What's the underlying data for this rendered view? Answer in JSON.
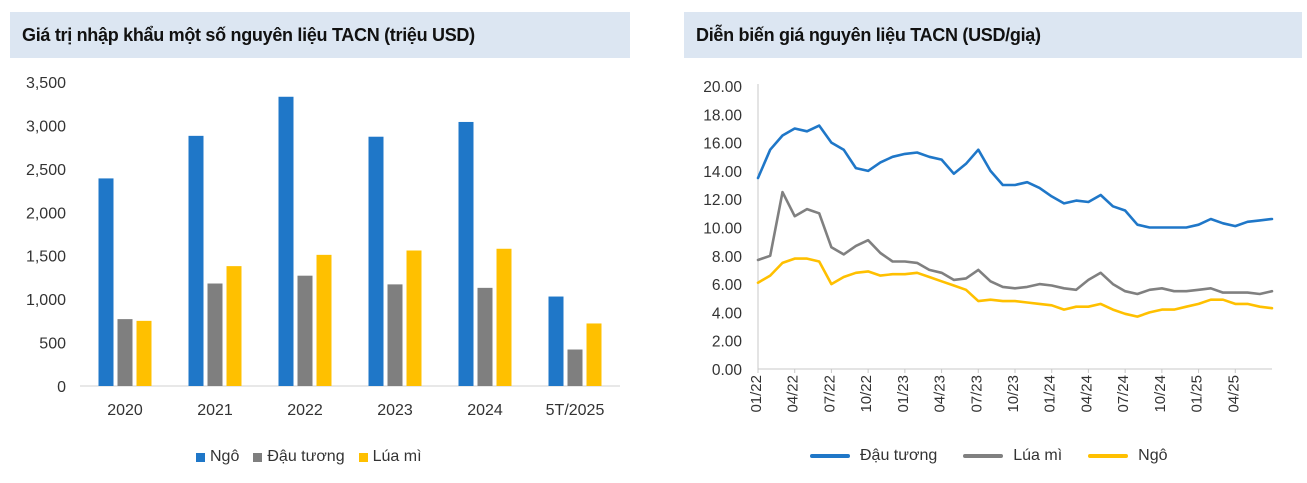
{
  "left": {
    "title": "Giá trị nhập khẩu một số nguyên liệu TACN (triệu USD)",
    "legend": [
      {
        "label": "Ngô",
        "color": "#1f77c8"
      },
      {
        "label": "Đậu tương",
        "color": "#7f7f7f"
      },
      {
        "label": "Lúa mì",
        "color": "#ffc000"
      }
    ]
  },
  "right": {
    "title": "Diễn biến giá nguyên liệu TACN (USD/giạ)",
    "legend": [
      {
        "label": "Đậu tương",
        "color": "#1f77c8"
      },
      {
        "label": "Lúa mì",
        "color": "#808080"
      },
      {
        "label": "Ngô",
        "color": "#ffc000"
      }
    ]
  },
  "chart_data": [
    {
      "type": "bar",
      "title": "Giá trị nhập khẩu một số nguyên liệu TACN (triệu USD)",
      "categories": [
        "2020",
        "2021",
        "2022",
        "2023",
        "2024",
        "5T/2025"
      ],
      "series": [
        {
          "name": "Ngô",
          "color": "#1f77c8",
          "values": [
            2390,
            2880,
            3330,
            2870,
            3040,
            1030
          ]
        },
        {
          "name": "Đậu tương",
          "color": "#7f7f7f",
          "values": [
            770,
            1180,
            1270,
            1170,
            1130,
            420
          ]
        },
        {
          "name": "Lúa mì",
          "color": "#ffc000",
          "values": [
            750,
            1380,
            1510,
            1560,
            1580,
            720
          ]
        }
      ],
      "ylim": [
        0,
        3500
      ],
      "yticks": [
        0,
        500,
        1000,
        1500,
        2000,
        2500,
        3000,
        3500
      ],
      "ytick_labels": [
        "0",
        "500",
        "1,000",
        "1,500",
        "2,000",
        "2,500",
        "3,000",
        "3,500"
      ],
      "grid": false,
      "legend_position": "bottom"
    },
    {
      "type": "line",
      "title": "Diễn biến giá nguyên liệu TACN (USD/giạ)",
      "x": [
        "01/22",
        "02/22",
        "03/22",
        "04/22",
        "05/22",
        "06/22",
        "07/22",
        "08/22",
        "09/22",
        "10/22",
        "11/22",
        "12/22",
        "01/23",
        "02/23",
        "03/23",
        "04/23",
        "05/23",
        "06/23",
        "07/23",
        "08/23",
        "09/23",
        "10/23",
        "11/23",
        "12/23",
        "01/24",
        "02/24",
        "03/24",
        "04/24",
        "05/24",
        "06/24",
        "07/24",
        "08/24",
        "09/24",
        "10/24",
        "11/24",
        "12/24",
        "01/25",
        "02/25",
        "03/25",
        "04/25",
        "05/25",
        "06/25",
        "07/25"
      ],
      "xtick_labels": [
        "01/22",
        "04/22",
        "07/22",
        "10/22",
        "01/23",
        "04/23",
        "07/23",
        "10/23",
        "01/24",
        "04/24",
        "07/24",
        "10/24",
        "01/25",
        "04/25"
      ],
      "series": [
        {
          "name": "Đậu tương",
          "color": "#1f77c8",
          "values": [
            13.5,
            15.5,
            16.5,
            17.0,
            16.8,
            17.2,
            16.0,
            15.5,
            14.2,
            14.0,
            14.6,
            15.0,
            15.2,
            15.3,
            15.0,
            14.8,
            13.8,
            14.5,
            15.5,
            14.0,
            13.0,
            13.0,
            13.2,
            12.8,
            12.2,
            11.7,
            11.9,
            11.8,
            12.3,
            11.5,
            11.2,
            10.2,
            10.0,
            10.0,
            10.0,
            10.0,
            10.2,
            10.6,
            10.3,
            10.1,
            10.4,
            10.5,
            10.6
          ]
        },
        {
          "name": "Lúa mì",
          "color": "#808080",
          "values": [
            7.7,
            8.0,
            12.5,
            10.8,
            11.3,
            11.0,
            8.6,
            8.1,
            8.7,
            9.1,
            8.2,
            7.6,
            7.6,
            7.5,
            7.0,
            6.8,
            6.3,
            6.4,
            7.0,
            6.2,
            5.8,
            5.7,
            5.8,
            6.0,
            5.9,
            5.7,
            5.6,
            6.3,
            6.8,
            6.0,
            5.5,
            5.3,
            5.6,
            5.7,
            5.5,
            5.5,
            5.6,
            5.7,
            5.4,
            5.4,
            5.4,
            5.3,
            5.5
          ]
        },
        {
          "name": "Ngô",
          "color": "#ffc000",
          "values": [
            6.1,
            6.6,
            7.5,
            7.8,
            7.8,
            7.6,
            6.0,
            6.5,
            6.8,
            6.9,
            6.6,
            6.7,
            6.7,
            6.8,
            6.5,
            6.2,
            5.9,
            5.6,
            4.8,
            4.9,
            4.8,
            4.8,
            4.7,
            4.6,
            4.5,
            4.2,
            4.4,
            4.4,
            4.6,
            4.2,
            3.9,
            3.7,
            4.0,
            4.2,
            4.2,
            4.4,
            4.6,
            4.9,
            4.9,
            4.6,
            4.6,
            4.4,
            4.3
          ]
        }
      ],
      "ylim": [
        0,
        20
      ],
      "yticks": [
        0,
        2,
        4,
        6,
        8,
        10,
        12,
        14,
        16,
        18,
        20
      ],
      "ytick_labels": [
        "0.00",
        "2.00",
        "4.00",
        "6.00",
        "8.00",
        "10.00",
        "12.00",
        "14.00",
        "16.00",
        "18.00",
        "20.00"
      ],
      "grid": false,
      "legend_position": "bottom"
    }
  ]
}
